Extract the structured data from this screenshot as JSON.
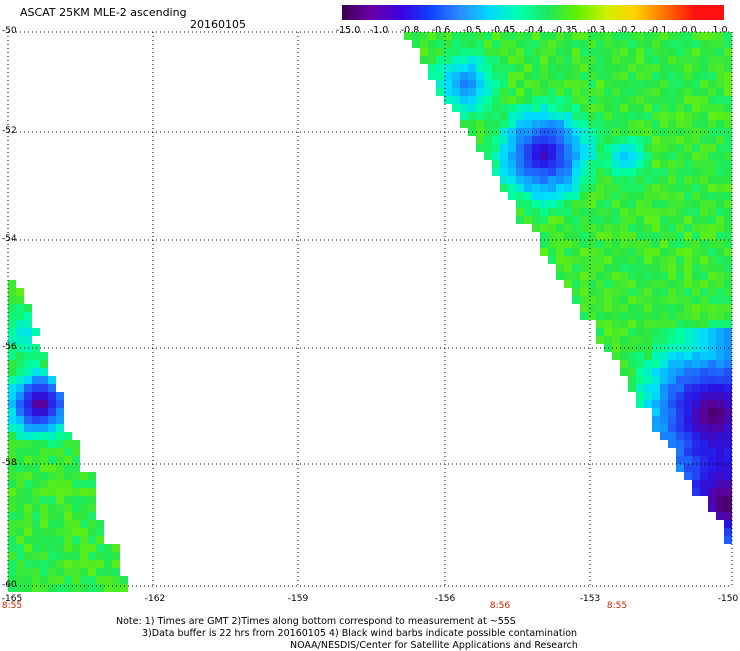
{
  "header": {
    "title": "ASCAT 25KM MLE-2 ascending",
    "date": "20160105"
  },
  "colorbar": {
    "labels": [
      "-15.0",
      "-1.0",
      "-0.8",
      "-0.6",
      "-0.5",
      "-0.45",
      "-0.4",
      "-0.35",
      "-0.3",
      "-0.2",
      "-0.1",
      "0.0",
      "1.0"
    ],
    "colors": [
      "#3a0050",
      "#6a00a8",
      "#3b00e0",
      "#1040ff",
      "#2a8bff",
      "#00d8ff",
      "#00ffb0",
      "#1ee860",
      "#60f000",
      "#d0f000",
      "#ffd000",
      "#ff7000",
      "#ff1010"
    ]
  },
  "map": {
    "lat_labels": [
      "-50",
      "-52",
      "-54",
      "-56",
      "-58",
      "-60"
    ],
    "lon_labels": [
      "-165",
      "-162",
      "-159",
      "-156",
      "-153",
      "-150"
    ],
    "time_labels": [
      "8:55",
      "8:56",
      "8:55"
    ]
  },
  "notes": [
    "Note: 1) Times are GMT 2)Times along bottom correspond to measurement at ~55S",
    "3)Data buffer is 22 hrs from 20160105 4) Black wind barbs indicate possible contamination",
    "NOAA/NESDIS/Center for Satellite Applications and Research"
  ]
}
